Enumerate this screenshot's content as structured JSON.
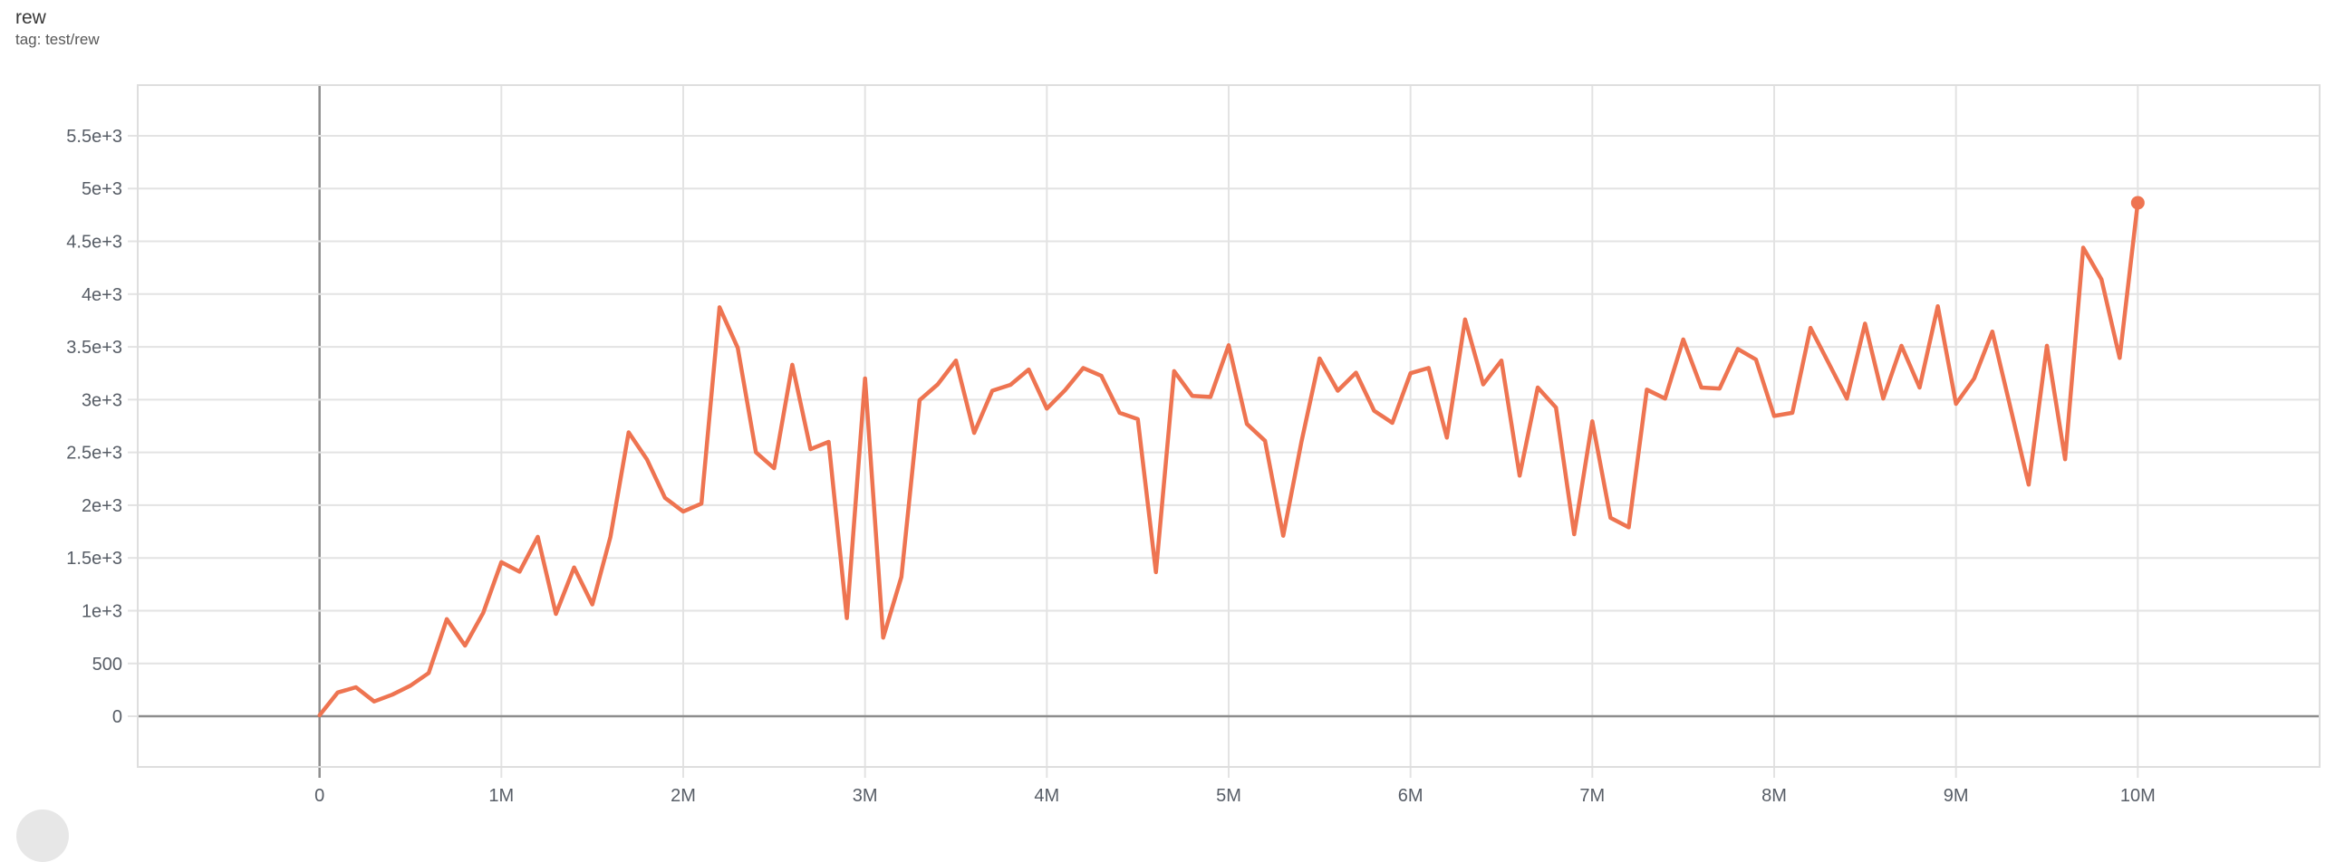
{
  "header": {
    "title": "rew",
    "tag": "tag: test/rew"
  },
  "chart_data": {
    "type": "line",
    "title": "rew",
    "subtitle": "tag: test/rew",
    "xlabel": "",
    "ylabel": "",
    "grid": true,
    "legend_position": "none",
    "xlim": [
      -1000000,
      11000000
    ],
    "ylim": [
      -480,
      5980
    ],
    "x_ticks": [
      {
        "v": 0,
        "label": "0"
      },
      {
        "v": 1000000,
        "label": "1M"
      },
      {
        "v": 2000000,
        "label": "2M"
      },
      {
        "v": 3000000,
        "label": "3M"
      },
      {
        "v": 4000000,
        "label": "4M"
      },
      {
        "v": 5000000,
        "label": "5M"
      },
      {
        "v": 6000000,
        "label": "6M"
      },
      {
        "v": 7000000,
        "label": "7M"
      },
      {
        "v": 8000000,
        "label": "8M"
      },
      {
        "v": 9000000,
        "label": "9M"
      },
      {
        "v": 10000000,
        "label": "10M"
      }
    ],
    "y_ticks": [
      {
        "v": 0,
        "label": "0"
      },
      {
        "v": 500,
        "label": "500"
      },
      {
        "v": 1000,
        "label": "1e+3"
      },
      {
        "v": 1500,
        "label": "1.5e+3"
      },
      {
        "v": 2000,
        "label": "2e+3"
      },
      {
        "v": 2500,
        "label": "2.5e+3"
      },
      {
        "v": 3000,
        "label": "3e+3"
      },
      {
        "v": 3500,
        "label": "3.5e+3"
      },
      {
        "v": 4000,
        "label": "4e+3"
      },
      {
        "v": 4500,
        "label": "4.5e+3"
      },
      {
        "v": 5000,
        "label": "5e+3"
      },
      {
        "v": 5500,
        "label": "5.5e+3"
      }
    ],
    "series": [
      {
        "name": "test/rew",
        "color": "#ee7451",
        "end_marker": true,
        "points": [
          [
            0,
            10
          ],
          [
            100000,
            225
          ],
          [
            200000,
            275
          ],
          [
            300000,
            140
          ],
          [
            400000,
            205
          ],
          [
            500000,
            290
          ],
          [
            600000,
            410
          ],
          [
            700000,
            920
          ],
          [
            800000,
            670
          ],
          [
            900000,
            980
          ],
          [
            1000000,
            1460
          ],
          [
            1100000,
            1370
          ],
          [
            1200000,
            1700
          ],
          [
            1300000,
            970
          ],
          [
            1400000,
            1410
          ],
          [
            1500000,
            1060
          ],
          [
            1600000,
            1700
          ],
          [
            1700000,
            2690
          ],
          [
            1800000,
            2435
          ],
          [
            1900000,
            2070
          ],
          [
            2000000,
            1940
          ],
          [
            2100000,
            2015
          ],
          [
            2200000,
            3875
          ],
          [
            2300000,
            3490
          ],
          [
            2400000,
            2500
          ],
          [
            2500000,
            2350
          ],
          [
            2600000,
            3330
          ],
          [
            2700000,
            2530
          ],
          [
            2800000,
            2600
          ],
          [
            2900000,
            930
          ],
          [
            3000000,
            3200
          ],
          [
            3100000,
            745
          ],
          [
            3200000,
            1320
          ],
          [
            3300000,
            2995
          ],
          [
            3400000,
            3145
          ],
          [
            3500000,
            3370
          ],
          [
            3600000,
            2685
          ],
          [
            3700000,
            3085
          ],
          [
            3800000,
            3140
          ],
          [
            3900000,
            3285
          ],
          [
            4000000,
            2915
          ],
          [
            4100000,
            3090
          ],
          [
            4200000,
            3300
          ],
          [
            4300000,
            3225
          ],
          [
            4400000,
            2875
          ],
          [
            4500000,
            2815
          ],
          [
            4600000,
            1365
          ],
          [
            4700000,
            3270
          ],
          [
            4800000,
            3035
          ],
          [
            4900000,
            3025
          ],
          [
            5000000,
            3515
          ],
          [
            5100000,
            2770
          ],
          [
            5200000,
            2610
          ],
          [
            5300000,
            1710
          ],
          [
            5400000,
            2600
          ],
          [
            5500000,
            3390
          ],
          [
            5600000,
            3085
          ],
          [
            5700000,
            3255
          ],
          [
            5800000,
            2895
          ],
          [
            5900000,
            2780
          ],
          [
            6000000,
            3250
          ],
          [
            6100000,
            3300
          ],
          [
            6200000,
            2640
          ],
          [
            6300000,
            3760
          ],
          [
            6400000,
            3145
          ],
          [
            6500000,
            3370
          ],
          [
            6600000,
            2280
          ],
          [
            6700000,
            3115
          ],
          [
            6800000,
            2925
          ],
          [
            6900000,
            1725
          ],
          [
            7000000,
            2795
          ],
          [
            7100000,
            1880
          ],
          [
            7200000,
            1790
          ],
          [
            7300000,
            3095
          ],
          [
            7400000,
            3010
          ],
          [
            7500000,
            3570
          ],
          [
            7600000,
            3115
          ],
          [
            7700000,
            3105
          ],
          [
            7800000,
            3480
          ],
          [
            7900000,
            3380
          ],
          [
            8000000,
            2845
          ],
          [
            8100000,
            2875
          ],
          [
            8200000,
            3680
          ],
          [
            8300000,
            3345
          ],
          [
            8400000,
            3010
          ],
          [
            8500000,
            3720
          ],
          [
            8600000,
            3010
          ],
          [
            8700000,
            3510
          ],
          [
            8800000,
            3115
          ],
          [
            8900000,
            3885
          ],
          [
            9000000,
            2960
          ],
          [
            9100000,
            3200
          ],
          [
            9200000,
            3645
          ],
          [
            9300000,
            2920
          ],
          [
            9400000,
            2195
          ],
          [
            9500000,
            3510
          ],
          [
            9600000,
            2435
          ],
          [
            9700000,
            4440
          ],
          [
            9800000,
            4140
          ],
          [
            9900000,
            3395
          ],
          [
            10000000,
            4865
          ]
        ]
      }
    ]
  },
  "colors": {
    "line": "#ee7451",
    "gridline": "#e3e3e3",
    "border": "#dedede",
    "zero_axis": "#8d8d8d",
    "tick_label": "#575d66"
  }
}
